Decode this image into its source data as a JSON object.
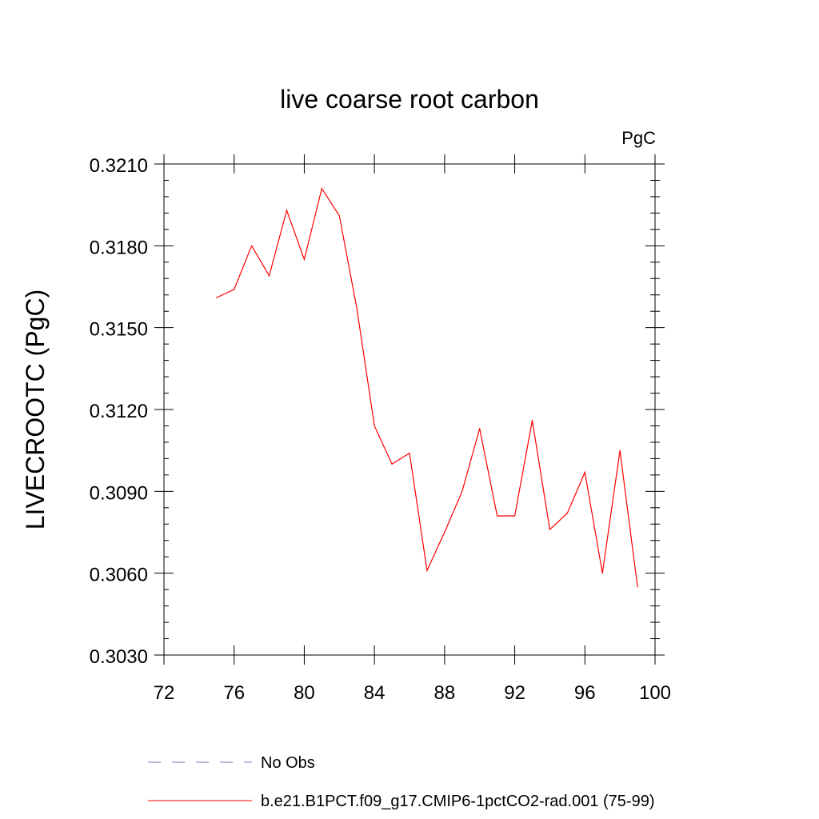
{
  "chart_data": {
    "type": "line",
    "title": "live coarse root carbon",
    "units": "PgC",
    "ylabel": "LIVECROOTC  (PgC)",
    "xlabel": "",
    "xlim": [
      72,
      100
    ],
    "ylim": [
      0.303,
      0.321
    ],
    "x_ticks": [
      72,
      76,
      80,
      84,
      88,
      92,
      96,
      100
    ],
    "y_ticks": [
      0.303,
      0.306,
      0.309,
      0.312,
      0.315,
      0.318,
      0.321
    ],
    "x_tick_labels": [
      "72",
      "76",
      "80",
      "84",
      "88",
      "92",
      "96",
      "100"
    ],
    "y_tick_labels": [
      "0.3030",
      "0.3060",
      "0.3090",
      "0.3120",
      "0.3150",
      "0.3180",
      "0.3210"
    ],
    "grid": false,
    "legend_placement": "bottom",
    "series": [
      {
        "name": "b.e21.B1PCT.f09_g17.CMIP6-1pctCO2-rad.001 (75-99)",
        "color": "#ff0000",
        "style": "solid",
        "x": [
          75,
          76,
          77,
          78,
          79,
          80,
          81,
          82,
          83,
          84,
          85,
          86,
          87,
          88,
          89,
          90,
          91,
          92,
          93,
          94,
          95,
          96,
          97,
          98,
          99
        ],
        "y": [
          0.3161,
          0.3164,
          0.318,
          0.3169,
          0.3193,
          0.3175,
          0.3201,
          0.3191,
          0.3157,
          0.3114,
          0.31,
          0.3104,
          0.3061,
          0.3075,
          0.309,
          0.3113,
          0.3081,
          0.3081,
          0.3116,
          0.3076,
          0.3082,
          0.3097,
          0.306,
          0.3105,
          0.3055
        ]
      }
    ],
    "legend": [
      {
        "label": "No Obs",
        "color": "#7777bb",
        "style": "dashed"
      },
      {
        "label": "b.e21.B1PCT.f09_g17.CMIP6-1pctCO2-rad.001 (75-99)",
        "color": "#ff0000",
        "style": "solid"
      }
    ]
  }
}
